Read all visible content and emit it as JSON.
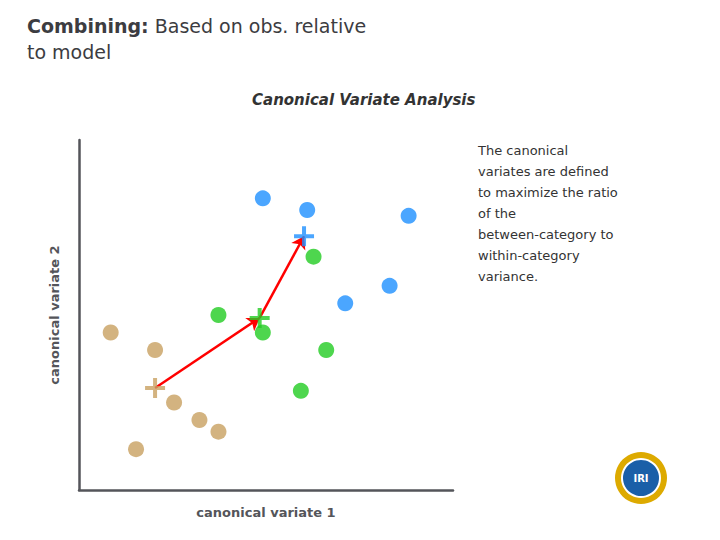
{
  "chart_data": {
    "type": "scatter",
    "title": "Combining: Based on obs. relative\nto model",
    "subtitle": "Canonical Variate Analysis",
    "xlabel": "canonical variate 1",
    "ylabel": "canonical variate 2",
    "annotation": "The canonical\nvariates are defined\nto maximize the ratio\nof the\nbetween-category to\nwithin-category\nvariance.",
    "logo": "IRI",
    "xlim": [
      0.3,
      6.2
    ],
    "ylim": [
      0.8,
      6.8
    ],
    "tick_labels": false,
    "grid": false,
    "series": [
      {
        "color": "#1e90ff",
        "values": [
          [
            3.2,
            5.8
          ],
          [
            3.9,
            5.6
          ],
          [
            5.5,
            5.5
          ],
          [
            4.5,
            4.0
          ],
          [
            5.2,
            4.3
          ]
        ],
        "center": [
          3.85,
          5.15
        ],
        "center_marker": "plus"
      },
      {
        "color": "#22cc22",
        "values": [
          [
            2.5,
            3.8
          ],
          [
            3.2,
            3.5
          ],
          [
            4.0,
            4.8
          ],
          [
            4.2,
            3.2
          ],
          [
            3.8,
            2.5
          ]
        ],
        "center": [
          3.15,
          3.75
        ],
        "center_marker": "plus"
      },
      {
        "color": "#c8a060",
        "values": [
          [
            0.8,
            3.5
          ],
          [
            1.5,
            3.2
          ],
          [
            1.8,
            2.3
          ],
          [
            2.2,
            2.0
          ],
          [
            1.2,
            1.5
          ],
          [
            2.5,
            1.8
          ]
        ],
        "center": [
          1.5,
          2.55
        ],
        "center_marker": "plus"
      }
    ],
    "arrows": [
      {
        "from": [
          1.5,
          2.55
        ],
        "to": [
          3.15,
          3.75
        ],
        "color": "#ff0000"
      },
      {
        "from": [
          3.15,
          3.75
        ],
        "to": [
          3.85,
          5.15
        ],
        "color": "#ff0000"
      }
    ]
  }
}
